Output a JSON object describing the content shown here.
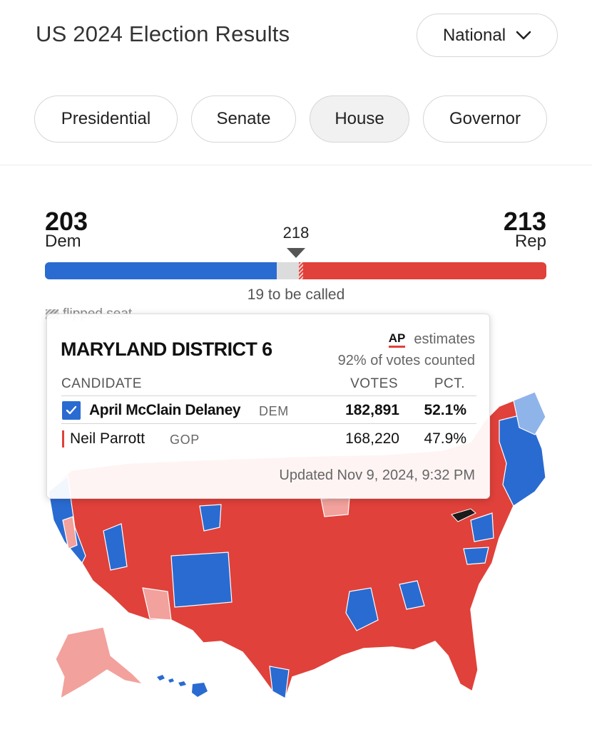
{
  "header": {
    "title": "US 2024 Election Results",
    "region_select": "National"
  },
  "tabs": [
    {
      "label": "Presidential",
      "active": false
    },
    {
      "label": "Senate",
      "active": false
    },
    {
      "label": "House",
      "active": true
    },
    {
      "label": "Governor",
      "active": false
    }
  ],
  "tally": {
    "dem_seats": "203",
    "dem_label": "Dem",
    "rep_seats": "213",
    "rep_label": "Rep",
    "majority": "218",
    "to_be_called": "19 to be called",
    "flipped_label": "flipped seat",
    "bar": {
      "dem": 203,
      "uncalled": 19,
      "rep": 213,
      "total": 435
    }
  },
  "colors": {
    "dem": "#2a6bd1",
    "rep": "#e0413a",
    "dem_light": "#8fb4ea",
    "rep_light": "#f2a19c",
    "uncalled": "#dcdcdc"
  },
  "popup": {
    "district": "MARYLAND DISTRICT 6",
    "source": "AP",
    "source_note": "estimates",
    "counted": "92% of votes counted",
    "columns": {
      "candidate": "CANDIDATE",
      "votes": "VOTES",
      "pct": "PCT."
    },
    "candidates": [
      {
        "name": "April McClain Delaney",
        "party": "DEM",
        "votes": "182,891",
        "pct": "52.1%",
        "winner": true
      },
      {
        "name": "Neil Parrott",
        "party": "GOP",
        "votes": "168,220",
        "pct": "47.9%",
        "winner": false
      }
    ],
    "updated": "Updated Nov 9, 2024, 9:32 PM"
  },
  "map": {
    "name": "us-house-district-map",
    "highlighted_district": "MARYLAND DISTRICT 6"
  }
}
